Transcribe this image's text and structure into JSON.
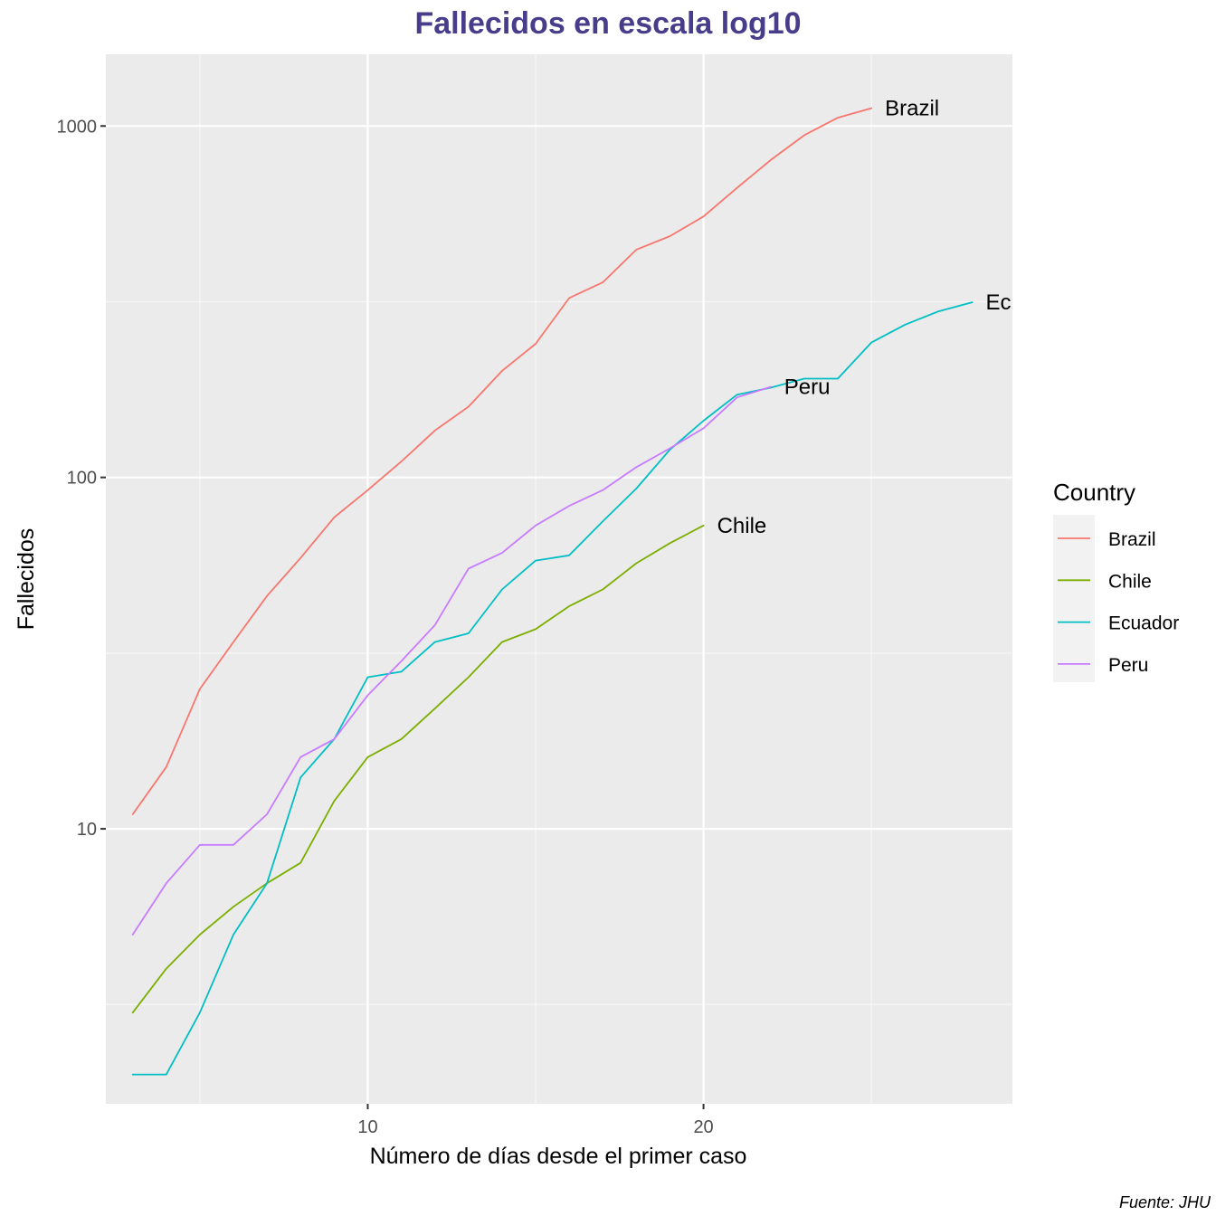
{
  "chart_data": {
    "type": "line",
    "title": "Fallecidos en escala log10",
    "xlabel": "Número de días desde el primer caso",
    "ylabel": "Fallecidos",
    "caption": "Fuente: JHU",
    "y_scale": "log10",
    "xlim": [
      2.2,
      29.2
    ],
    "ylim": [
      1.65,
      1600
    ],
    "x_ticks": [
      10,
      20
    ],
    "x_tick_labels": [
      "10",
      "20"
    ],
    "y_ticks": [
      10,
      100,
      1000
    ],
    "y_tick_labels": [
      "10",
      "100",
      "1000"
    ],
    "grid": true,
    "legend": {
      "title": "Country",
      "position": "right",
      "entries": [
        "Brazil",
        "Chile",
        "Ecuador",
        "Peru"
      ]
    },
    "series": [
      {
        "name": "Brazil",
        "color": "#F8766D",
        "end_label": "Brazil",
        "x": [
          3,
          4,
          5,
          6,
          7,
          8,
          9,
          10,
          11,
          12,
          13,
          14,
          15,
          16,
          17,
          18,
          19,
          20,
          21,
          22,
          23,
          24,
          25
        ],
        "y": [
          11,
          15,
          25,
          34,
          46,
          59,
          77,
          92,
          111,
          136,
          159,
          201,
          240,
          324,
          359,
          445,
          486,
          553,
          667,
          800,
          941,
          1056,
          1124
        ]
      },
      {
        "name": "Chile",
        "color": "#7CAE00",
        "end_label": "Chile",
        "x": [
          3,
          4,
          5,
          6,
          7,
          8,
          9,
          10,
          11,
          12,
          13,
          14,
          15,
          16,
          17,
          18,
          19,
          20
        ],
        "y": [
          3,
          4,
          5,
          6,
          7,
          8,
          12,
          16,
          18,
          22,
          27,
          34,
          37,
          43,
          48,
          57,
          65,
          73
        ]
      },
      {
        "name": "Ecuador",
        "color": "#00BFC4",
        "end_label": "Ec",
        "x": [
          3,
          4,
          5,
          6,
          7,
          8,
          9,
          10,
          11,
          12,
          13,
          14,
          15,
          16,
          17,
          18,
          19,
          20,
          21,
          22,
          23,
          24,
          25,
          26,
          27,
          28
        ],
        "y": [
          2,
          2,
          3,
          5,
          7,
          14,
          18,
          27,
          28,
          34,
          36,
          48,
          58,
          60,
          75,
          93,
          120,
          145,
          172,
          180,
          191,
          191,
          242,
          272,
          297,
          315
        ]
      },
      {
        "name": "Peru",
        "color": "#C77CFF",
        "end_label": "Peru",
        "x": [
          3,
          4,
          5,
          6,
          7,
          8,
          9,
          10,
          11,
          12,
          13,
          14,
          15,
          16,
          17,
          18,
          19,
          20,
          21,
          22
        ],
        "y": [
          5,
          7,
          9,
          9,
          11,
          16,
          18,
          24,
          30,
          38,
          55,
          61,
          73,
          83,
          92,
          107,
          121,
          138,
          169,
          181
        ]
      }
    ]
  }
}
